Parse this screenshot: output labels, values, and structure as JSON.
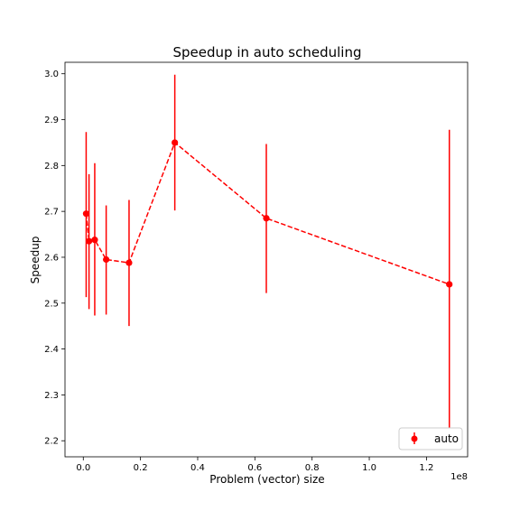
{
  "chart_data": {
    "type": "scatter",
    "title": "Speedup in auto scheduling",
    "xlabel": "Problem (vector) size",
    "ylabel": "Speedup",
    "x_offset_label": "1e8",
    "xlim": [
      -0.064,
      1.344
    ],
    "ylim": [
      2.165,
      3.025
    ],
    "x_ticks": [
      0.0,
      0.2,
      0.4,
      0.6,
      0.8,
      1.0,
      1.2
    ],
    "x_tick_labels": [
      "0.0",
      "0.2",
      "0.4",
      "0.6",
      "0.8",
      "1.0",
      "1.2"
    ],
    "y_ticks": [
      2.2,
      2.3,
      2.4,
      2.5,
      2.6,
      2.7,
      2.8,
      2.9,
      3.0
    ],
    "y_tick_labels": [
      "2.2",
      "2.3",
      "2.4",
      "2.5",
      "2.6",
      "2.7",
      "2.8",
      "2.9",
      "3.0"
    ],
    "grid": false,
    "legend_position": "lower-right",
    "series": [
      {
        "name": "auto",
        "color": "#ff0000",
        "line_style": "dashed",
        "marker": "circle",
        "x": [
          0.01,
          0.02,
          0.04,
          0.08,
          0.16,
          0.32,
          0.64,
          1.28
        ],
        "y": [
          2.695,
          2.635,
          2.638,
          2.595,
          2.588,
          2.85,
          2.685,
          2.541
        ],
        "err_low": [
          2.513,
          2.487,
          2.473,
          2.475,
          2.45,
          2.702,
          2.522,
          2.222
        ],
        "err_high": [
          2.873,
          2.781,
          2.805,
          2.713,
          2.725,
          2.998,
          2.847,
          2.878
        ]
      }
    ]
  }
}
